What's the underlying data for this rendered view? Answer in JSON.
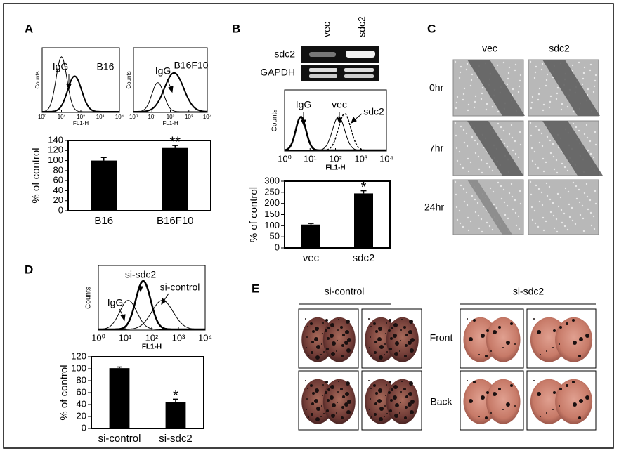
{
  "panels": [
    "A",
    "B",
    "C",
    "D",
    "E"
  ],
  "histograms": [
    {
      "labels": [
        "IgG",
        "B16"
      ],
      "x_label": "FL1-H",
      "y_label": "Counts",
      "xticks": [
        "10⁰",
        "10¹",
        "10²",
        "10³",
        "10⁴"
      ]
    },
    {
      "labels": [
        "IgG",
        "B16F10"
      ],
      "x_label": "FL1-H",
      "y_label": "Counts",
      "xticks": [
        "10⁰",
        "10¹",
        "10²",
        "10³",
        "10⁴"
      ]
    },
    {
      "labels": [
        "IgG",
        "vec",
        "sdc2"
      ],
      "x_label": "FL1-H",
      "y_label": "Counts",
      "xticks": [
        "10⁰",
        "10¹",
        "10²",
        "10³",
        "10⁴"
      ]
    },
    {
      "labels": [
        "IgG",
        "si-sdc2",
        "si-control"
      ],
      "x_label": "FL1-H",
      "y_label": "Counts",
      "xticks": [
        "10⁰",
        "10¹",
        "10²",
        "10³",
        "10⁴"
      ]
    }
  ],
  "gel": {
    "lanes": [
      "vec",
      "sdc2"
    ],
    "rows": [
      "sdc2",
      "GAPDH"
    ]
  },
  "scratch": {
    "columns": [
      "vec",
      "sdc2"
    ],
    "rows": [
      "0hr",
      "7hr",
      "24hr"
    ]
  },
  "lungs": {
    "groups": [
      "si-control",
      "si-sdc2"
    ],
    "rows": [
      "Front",
      "Back"
    ]
  },
  "chart_data": [
    {
      "type": "bar",
      "categories": [
        "B16",
        "B16F10"
      ],
      "values": [
        100,
        125
      ],
      "errors": [
        6,
        5
      ],
      "color": "#000000",
      "y_label": "% of control",
      "ylim": [
        0,
        140
      ],
      "yticks": [
        0,
        20,
        40,
        60,
        80,
        100,
        120,
        140
      ],
      "annotations": [
        {
          "category": "B16F10",
          "text": "**"
        }
      ]
    },
    {
      "type": "bar",
      "categories": [
        "vec",
        "sdc2"
      ],
      "values": [
        105,
        245
      ],
      "errors": [
        5,
        12
      ],
      "color": "#000000",
      "y_label": "% of control",
      "ylim": [
        0,
        300
      ],
      "yticks": [
        0,
        50,
        100,
        150,
        200,
        250,
        300
      ],
      "annotations": [
        {
          "category": "sdc2",
          "text": "*"
        }
      ]
    },
    {
      "type": "bar",
      "categories": [
        "si-control",
        "si-sdc2"
      ],
      "values": [
        101,
        44
      ],
      "errors": [
        2,
        5
      ],
      "color": "#000000",
      "y_label": "% of control",
      "ylim": [
        0,
        120
      ],
      "yticks": [
        0,
        20,
        40,
        60,
        80,
        100,
        120
      ],
      "annotations": [
        {
          "category": "si-sdc2",
          "text": "*"
        }
      ]
    }
  ]
}
